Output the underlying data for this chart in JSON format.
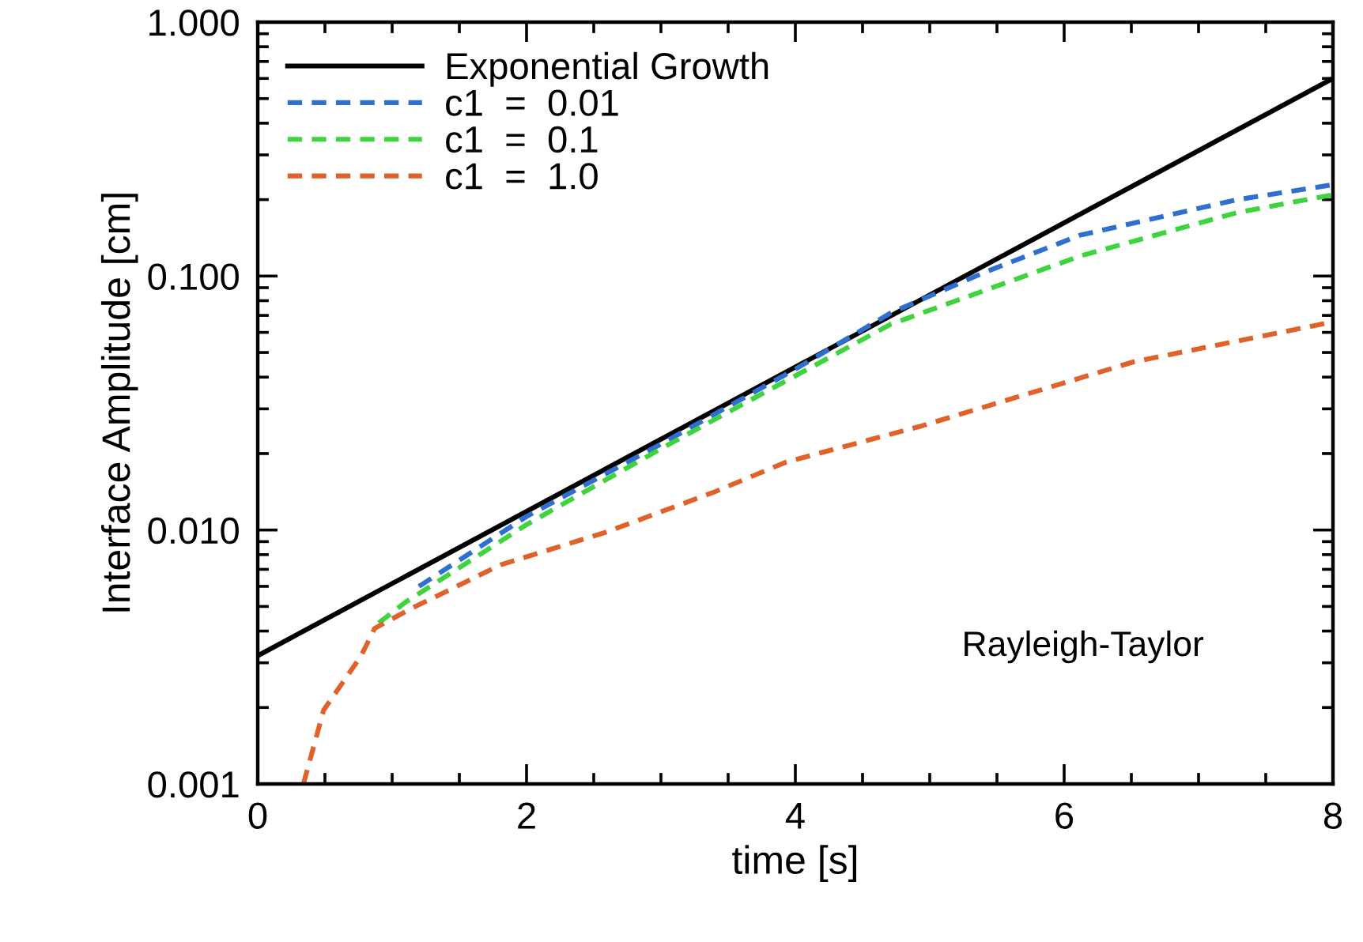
{
  "chart_data": {
    "type": "line",
    "xlabel": "time [s]",
    "ylabel": "Interface Amplitude [cm]",
    "log": "y",
    "xlim": [
      0,
      8
    ],
    "xticks": [
      0,
      2,
      4,
      6,
      8
    ],
    "ylim": [
      0.001,
      1.0
    ],
    "yticks": [
      {
        "value": 0.001,
        "label": "0.001"
      },
      {
        "value": 0.01,
        "label": "0.010"
      },
      {
        "value": 0.1,
        "label": "0.100"
      },
      {
        "value": 1.0,
        "label": "1.000"
      }
    ],
    "grid": false,
    "legend": "top left",
    "marker": "none",
    "annotations": [
      "Rayleigh-Taylor"
    ],
    "series": [
      {
        "name": "Exponential Growth",
        "color": "#000000",
        "line_style": "solid",
        "x": [
          0,
          8
        ],
        "values": [
          0.0032,
          0.6
        ]
      },
      {
        "name": "c1  =  0.01",
        "color": "#2f6fd0",
        "line_style": "dashed",
        "x": [
          1.2,
          2,
          3,
          4,
          4.71,
          5.4,
          6.12,
          7.29,
          8
        ],
        "values": [
          0.006,
          0.0113,
          0.0218,
          0.043,
          0.0716,
          0.103,
          0.145,
          0.2,
          0.229
        ]
      },
      {
        "name": "c1  =  0.1",
        "color": "#3ed43e",
        "line_style": "dashed",
        "x": [
          0.9,
          1.1,
          2,
          3,
          3.38,
          4.71,
          6.12,
          7.29,
          8
        ],
        "values": [
          0.0043,
          0.0052,
          0.0105,
          0.0209,
          0.0269,
          0.0646,
          0.12,
          0.178,
          0.209
        ]
      },
      {
        "name": "c1  =  1.0",
        "color": "#e0622a",
        "line_style": "dashed",
        "x": [
          0.34,
          0.49,
          0.63,
          0.77,
          0.87,
          1.14,
          1.81,
          2.59,
          3.38,
          3.93,
          4.94,
          6.52,
          8
        ],
        "values": [
          0.001,
          0.00195,
          0.0025,
          0.0032,
          0.0041,
          0.0049,
          0.0073,
          0.0098,
          0.014,
          0.0185,
          0.0257,
          0.046,
          0.066
        ]
      }
    ]
  }
}
